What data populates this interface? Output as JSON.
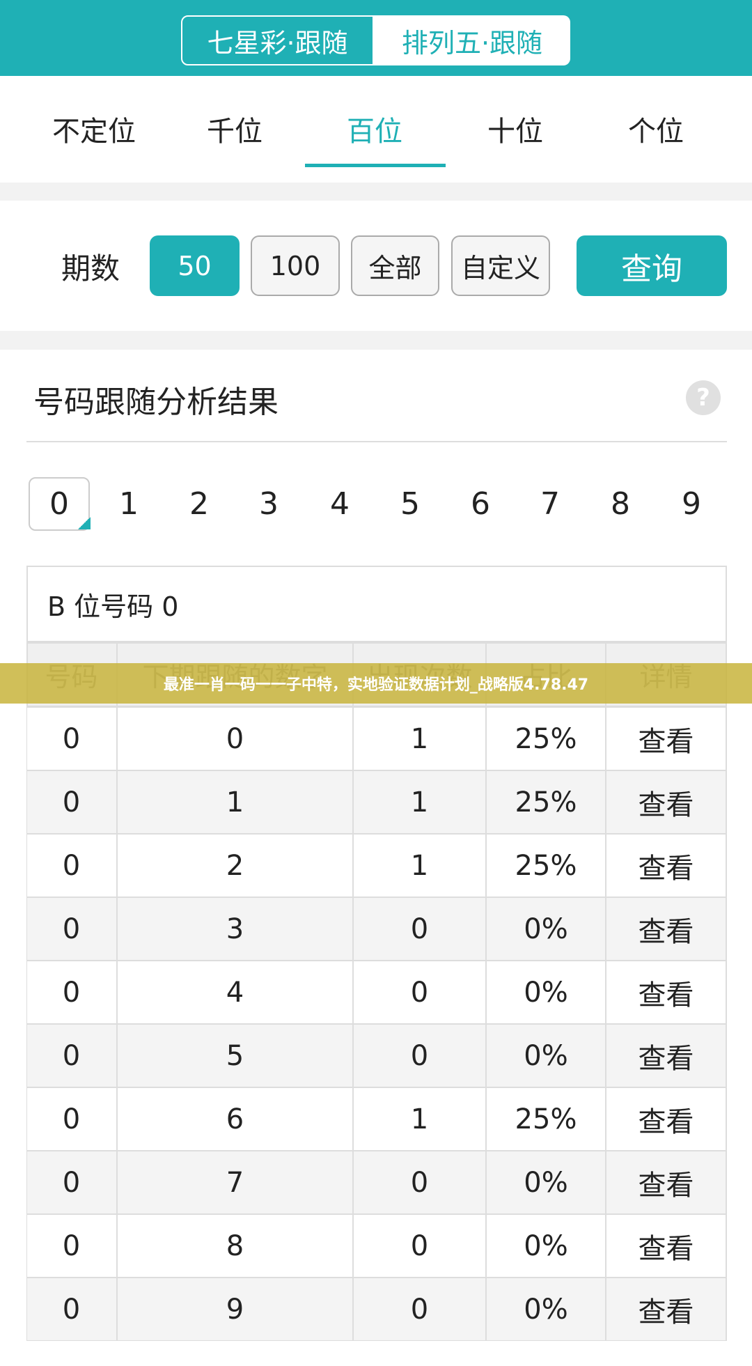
{
  "header": {
    "tabs": [
      "七星彩·跟随",
      "排列五·跟随"
    ]
  },
  "position_tabs": [
    "不定位",
    "千位",
    "百位",
    "十位",
    "个位"
  ],
  "period": {
    "label": "期数",
    "options": [
      "50",
      "100",
      "全部",
      "自定义"
    ],
    "query_button": "查询"
  },
  "result": {
    "title": "号码跟随分析结果",
    "digits": [
      "0",
      "1",
      "2",
      "3",
      "4",
      "5",
      "6",
      "7",
      "8",
      "9"
    ],
    "table": {
      "caption": "B 位号码 0",
      "columns": [
        "号码",
        "下期跟随的数字",
        "出现次数",
        "占比",
        "详情"
      ],
      "rows": [
        [
          "0",
          "0",
          "1",
          "25%",
          "查看"
        ],
        [
          "0",
          "1",
          "1",
          "25%",
          "查看"
        ],
        [
          "0",
          "2",
          "1",
          "25%",
          "查看"
        ],
        [
          "0",
          "3",
          "0",
          "0%",
          "查看"
        ],
        [
          "0",
          "4",
          "0",
          "0%",
          "查看"
        ],
        [
          "0",
          "5",
          "0",
          "0%",
          "查看"
        ],
        [
          "0",
          "6",
          "1",
          "25%",
          "查看"
        ],
        [
          "0",
          "7",
          "0",
          "0%",
          "查看"
        ],
        [
          "0",
          "8",
          "0",
          "0%",
          "查看"
        ],
        [
          "0",
          "9",
          "0",
          "0%",
          "查看"
        ]
      ]
    }
  },
  "banner": "最准一肖一码一一子中特，实地验证数据计划_战略版4.78.47"
}
